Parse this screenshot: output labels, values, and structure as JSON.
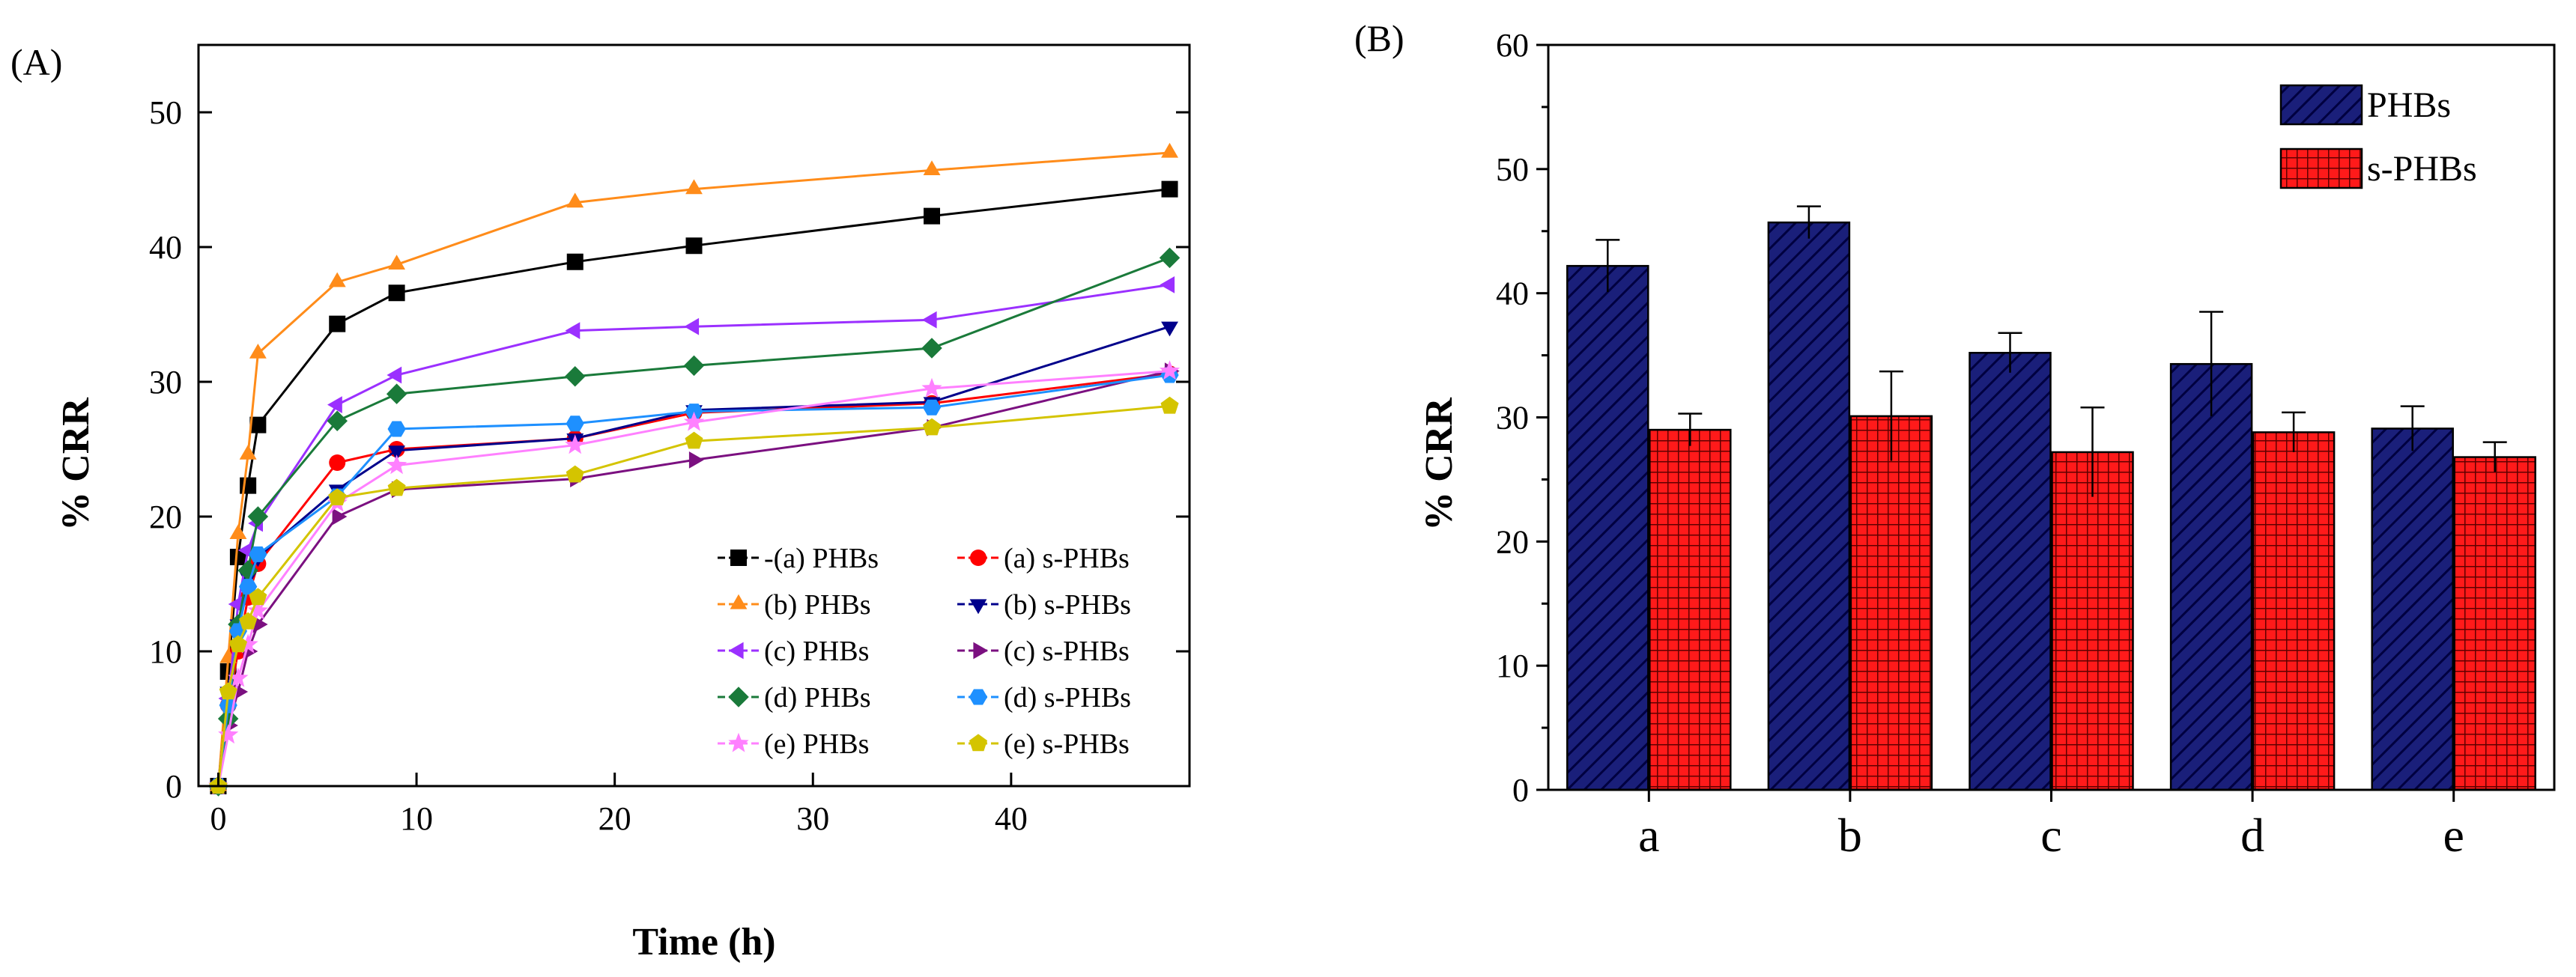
{
  "chart_data": [
    {
      "panel": "(A)",
      "type": "line",
      "xlabel": "Time (h)",
      "ylabel": "% CRR",
      "xlim": [
        -1,
        49
      ],
      "ylim": [
        0,
        55
      ],
      "xticks": [
        0,
        10,
        20,
        30,
        40
      ],
      "yticks": [
        0,
        10,
        20,
        30,
        40,
        50
      ],
      "legend_position": "bottom-right",
      "x": [
        0,
        0.5,
        1,
        1.5,
        2,
        6,
        9,
        18,
        24,
        36,
        48
      ],
      "series": [
        {
          "name": "(a) PHBs",
          "legend": "-(a) PHBs",
          "color": "#000000",
          "marker": "square",
          "values": [
            0,
            8.5,
            17,
            22.3,
            26.8,
            34.3,
            36.6,
            38.9,
            40.1,
            42.3,
            44.3
          ]
        },
        {
          "name": "(a) s-PHBs",
          "legend": "(a) s-PHBs",
          "color": "#ff0000",
          "marker": "circle",
          "values": [
            0,
            6,
            10,
            14,
            16.5,
            24,
            25,
            25.8,
            27.7,
            28.4,
            30.6
          ]
        },
        {
          "name": "(b) PHBs",
          "legend": "(b) PHBs",
          "color": "#ff8c1a",
          "marker": "triangle-up",
          "values": [
            0,
            9.5,
            18.7,
            24.6,
            32.1,
            37.4,
            38.7,
            43.3,
            44.3,
            45.7,
            47.0
          ]
        },
        {
          "name": "(b) s-PHBs",
          "legend": "(b) s-PHBs",
          "color": "#00008b",
          "marker": "triangle-down",
          "values": [
            0,
            7,
            12,
            15.5,
            17,
            22,
            24.9,
            25.8,
            27.9,
            28.5,
            34.1
          ]
        },
        {
          "name": "(c) PHBs",
          "legend": "(c) PHBs",
          "color": "#9b30ff",
          "marker": "triangle-left",
          "values": [
            0,
            6.5,
            13.5,
            17.5,
            19.5,
            28.3,
            30.5,
            33.8,
            34.1,
            34.6,
            37.2
          ]
        },
        {
          "name": "(c) s-PHBs",
          "legend": "(c) s-PHBs",
          "color": "#7b1080",
          "marker": "triangle-right",
          "values": [
            0,
            4.5,
            7,
            10,
            12,
            20,
            22,
            22.8,
            24.2,
            26.6,
            30.8
          ]
        },
        {
          "name": "(d) PHBs",
          "legend": "(d) PHBs",
          "color": "#1a7a3a",
          "marker": "diamond",
          "values": [
            0,
            5,
            12,
            16,
            20,
            27.1,
            29.1,
            30.4,
            31.2,
            32.5,
            39.2
          ]
        },
        {
          "name": "(d) s-PHBs",
          "legend": "(d) s-PHBs",
          "color": "#1e90ff",
          "marker": "hexagon",
          "values": [
            0,
            6,
            11.5,
            14.8,
            17.2,
            21.5,
            26.5,
            26.9,
            27.8,
            28.1,
            30.5
          ]
        },
        {
          "name": "(e) PHBs",
          "legend": "(e) PHBs",
          "color": "#ff80ff",
          "marker": "star",
          "values": [
            0,
            3.8,
            8,
            10.5,
            13,
            21,
            23.8,
            25.3,
            27,
            29.5,
            30.8
          ]
        },
        {
          "name": "(e) s-PHBs",
          "legend": "(e) s-PHBs",
          "color": "#d4c400",
          "marker": "pentagon",
          "values": [
            0,
            7,
            10.5,
            12.2,
            14,
            21.4,
            22.1,
            23.1,
            25.6,
            26.6,
            28.2
          ]
        }
      ]
    },
    {
      "panel": "(B)",
      "type": "bar",
      "xlabel": "",
      "ylabel": "% CRR",
      "ylim": [
        0,
        60
      ],
      "yticks": [
        0,
        10,
        20,
        30,
        40,
        50,
        60
      ],
      "categories": [
        "a",
        "b",
        "c",
        "d",
        "e"
      ],
      "legend_position": "top-right",
      "series": [
        {
          "name": "PHBs",
          "color": "#1a1f7a",
          "pattern": "diagonal-hatch",
          "values": [
            42.2,
            45.7,
            35.2,
            34.3,
            29.1
          ],
          "errors": [
            2.1,
            1.3,
            1.6,
            4.2,
            1.8
          ]
        },
        {
          "name": "s-PHBs",
          "color": "#ff1a1a",
          "pattern": "grid",
          "values": [
            29.0,
            30.1,
            27.2,
            28.8,
            26.8
          ],
          "errors": [
            1.3,
            3.6,
            3.6,
            1.6,
            1.2
          ]
        }
      ]
    }
  ]
}
